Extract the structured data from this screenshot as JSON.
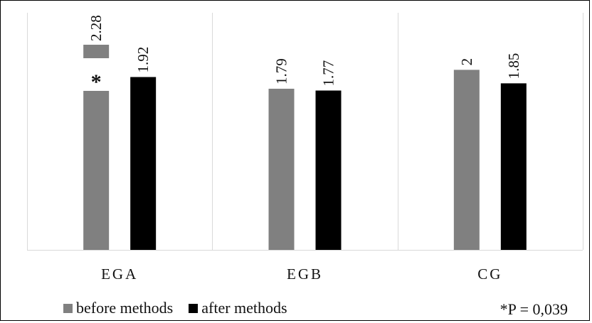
{
  "chart_data": {
    "type": "bar",
    "categories": [
      "EGA",
      "EGB",
      "CG"
    ],
    "series": [
      {
        "name": "before methods",
        "color": "#808080",
        "values": [
          2.28,
          1.79,
          2.0
        ]
      },
      {
        "name": "after methods",
        "color": "#000000",
        "values": [
          1.92,
          1.77,
          1.85
        ]
      }
    ],
    "data_labels": [
      [
        "2.28",
        "1.79",
        "2"
      ],
      [
        "1.92",
        "1.77",
        "1.85"
      ]
    ],
    "annotations": [
      {
        "category": "EGA",
        "series": 0,
        "text": "*"
      }
    ],
    "footnote": "*P = 0,039",
    "legend_position": "bottom-left",
    "grid": false,
    "category_separators": true
  }
}
